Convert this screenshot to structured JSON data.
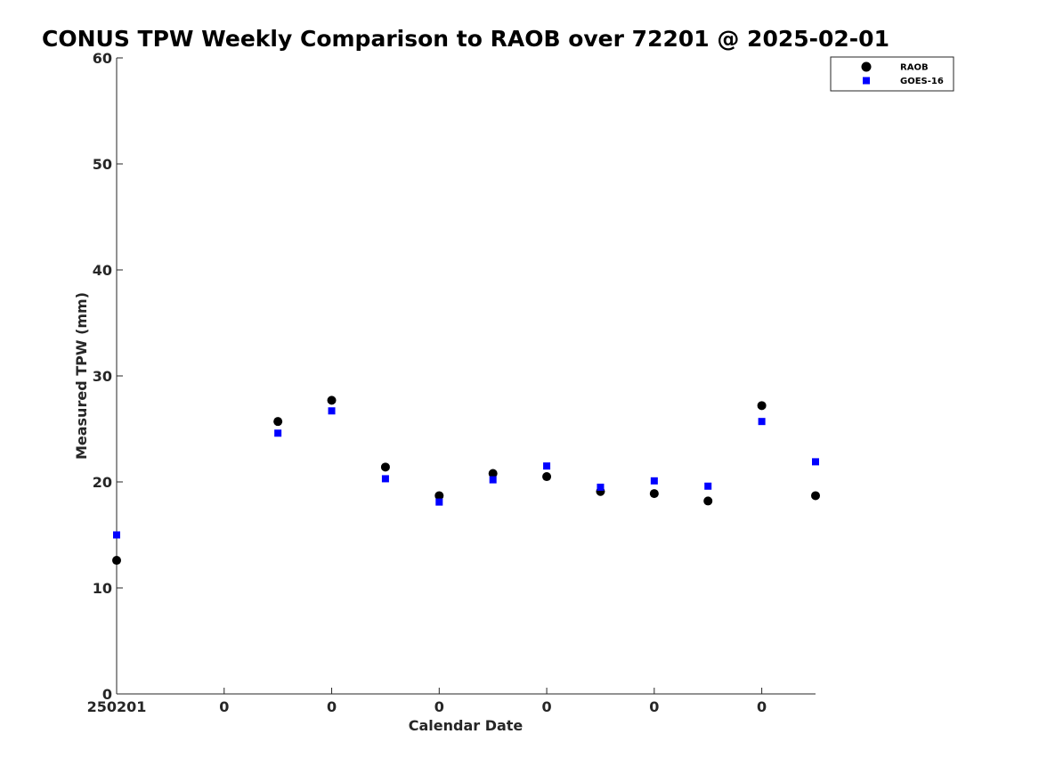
{
  "chart_data": {
    "type": "scatter",
    "title": "CONUS TPW Weekly Comparison to RAOB over 72201 @ 2025-02-01",
    "xlabel": "Calendar Date",
    "ylabel": "Measured TPW (mm)",
    "ylim": [
      0,
      60
    ],
    "yticks": [
      "0",
      "10",
      "20",
      "30",
      "40",
      "50",
      "60"
    ],
    "xlim": [
      0,
      13
    ],
    "xticks": [
      {
        "pos": 0,
        "label": "250201"
      },
      {
        "pos": 2,
        "label": "0"
      },
      {
        "pos": 4,
        "label": "0"
      },
      {
        "pos": 6,
        "label": "0"
      },
      {
        "pos": 8,
        "label": "0"
      },
      {
        "pos": 10,
        "label": "0"
      },
      {
        "pos": 12,
        "label": "0"
      }
    ],
    "grid": false,
    "legend_position": "top-right",
    "series": [
      {
        "name": "RAOB",
        "marker": "circle",
        "color": "#000000",
        "x": [
          0,
          3,
          4,
          5,
          6,
          7,
          8,
          9,
          10,
          11,
          12,
          13
        ],
        "y": [
          12.6,
          25.7,
          27.7,
          21.4,
          18.7,
          20.8,
          20.5,
          19.1,
          18.9,
          18.2,
          27.2,
          18.7
        ]
      },
      {
        "name": "GOES-16",
        "marker": "square",
        "color": "#0000ff",
        "x": [
          0,
          3,
          4,
          5,
          6,
          7,
          8,
          9,
          10,
          11,
          12,
          13
        ],
        "y": [
          15.0,
          24.6,
          26.7,
          20.3,
          18.1,
          20.2,
          21.5,
          19.5,
          20.1,
          19.6,
          25.7,
          21.9
        ]
      }
    ]
  }
}
